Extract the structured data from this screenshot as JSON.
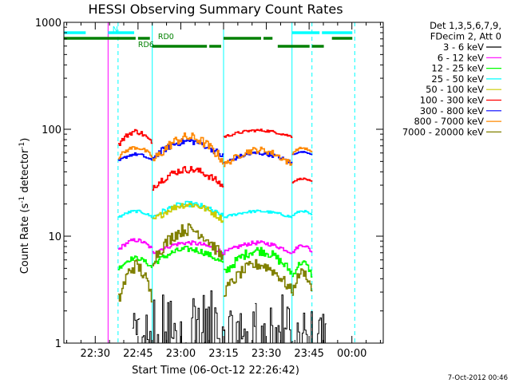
{
  "footer": {
    "date_stamp": "7-Oct-2012 00:46"
  },
  "chart_data": {
    "type": "line",
    "title": "HESSI Observing Summary Count Rates",
    "xlabel": "Start Time (06-Oct-12 22:26:42)",
    "ylabel_main": "Count Rate (s",
    "ylabel_sup1": "-1",
    "ylabel_mid": " detector",
    "ylabel_sup2": "-1",
    "ylabel_end": ")",
    "y_scale": "log",
    "ylim": [
      1,
      1000
    ],
    "xlim_min": [
      -11,
      101
    ],
    "x_ticks": [
      {
        "t": 0,
        "label": "22:30"
      },
      {
        "t": 15,
        "label": "22:45"
      },
      {
        "t": 30,
        "label": "23:00"
      },
      {
        "t": 45,
        "label": "23:15"
      },
      {
        "t": 60,
        "label": "23:30"
      },
      {
        "t": 75,
        "label": "23:45"
      },
      {
        "t": 90,
        "label": "00:00"
      }
    ],
    "y_ticks": [
      {
        "v": 1,
        "label": "1"
      },
      {
        "v": 10,
        "label": "10"
      },
      {
        "v": 100,
        "label": "100"
      },
      {
        "v": 1000,
        "label": "1000"
      }
    ],
    "legend_header": [
      "Det 1,3,5,6,7,9,",
      "FDecim 2, Att 0"
    ],
    "series": [
      {
        "name": "3 - 6 keV",
        "color": "#000000"
      },
      {
        "name": "6 - 12 keV",
        "color": "#ff00ff"
      },
      {
        "name": "12 - 25 keV",
        "color": "#00ff00"
      },
      {
        "name": "25 - 50 keV",
        "color": "#00ffff"
      },
      {
        "name": "50 - 100 keV",
        "color": "#cccc00"
      },
      {
        "name": "100 - 300 keV",
        "color": "#ff0000"
      },
      {
        "name": "300 - 800 keV",
        "color": "#0000ff"
      },
      {
        "name": "800 - 7000 keV",
        "color": "#ff8800"
      },
      {
        "name": "7000 - 20000 keV",
        "color": "#808000"
      }
    ],
    "observing_segments": [
      {
        "label": "N",
        "color": "#00ffff",
        "ranges": [
          [
            -11,
            -2.5
          ],
          [
            4.5,
            14.5
          ],
          [
            69,
            79.5
          ],
          [
            79.5,
            91
          ]
        ]
      },
      {
        "label": "RD0",
        "color": "#008000",
        "ranges": [
          [
            -11,
            15
          ],
          [
            15,
            20
          ],
          [
            45,
            59
          ],
          [
            59,
            63
          ],
          [
            83,
            91
          ]
        ]
      },
      {
        "label": "RD6",
        "color": "#008000",
        "ranges": [
          [
            20,
            40
          ],
          [
            40,
            45
          ],
          [
            64,
            76
          ],
          [
            76,
            81
          ]
        ]
      }
    ],
    "bands": [
      {
        "series": "3 - 6 keV",
        "segments": [
          {
            "t0": 13,
            "t1": 15.5,
            "lo": 1.2,
            "hi": 1.9
          },
          {
            "t0": 16,
            "t1": 20,
            "lo": 1.0,
            "hi": 2.0
          },
          {
            "t0": 20,
            "t1": 32,
            "lo": 1.0,
            "hi": 2.9
          },
          {
            "t0": 32,
            "t1": 45,
            "lo": 1.0,
            "hi": 3.1
          },
          {
            "t0": 45,
            "t1": 56,
            "lo": 1.0,
            "hi": 2.0
          },
          {
            "t0": 56,
            "t1": 69,
            "lo": 1.0,
            "hi": 2.9
          },
          {
            "t0": 69,
            "t1": 81,
            "lo": 1.0,
            "hi": 2.0
          }
        ]
      },
      {
        "series": "6 - 12 keV",
        "segments": [
          {
            "t0": 8,
            "t1": 20,
            "lo": 7.5,
            "hi": 9.5
          },
          {
            "t0": 20,
            "t1": 45,
            "lo": 7.0,
            "hi": 9.0
          },
          {
            "t0": 45,
            "t1": 69,
            "lo": 7.0,
            "hi": 9.0
          },
          {
            "t0": 69,
            "t1": 76,
            "lo": 7.0,
            "hi": 8.5
          }
        ]
      },
      {
        "series": "12 - 25 keV",
        "segments": [
          {
            "t0": 8,
            "t1": 20,
            "lo": 5.0,
            "hi": 6.5
          },
          {
            "t0": 20,
            "t1": 45,
            "lo": 5.5,
            "hi": 8.0
          },
          {
            "t0": 45,
            "t1": 69,
            "lo": 4.5,
            "hi": 8.0
          },
          {
            "t0": 69,
            "t1": 76,
            "lo": 4.2,
            "hi": 6.0
          }
        ]
      },
      {
        "series": "25 - 50 keV",
        "segments": [
          {
            "t0": 8,
            "t1": 20,
            "lo": 15.0,
            "hi": 17.5
          },
          {
            "t0": 20,
            "t1": 45,
            "lo": 15.0,
            "hi": 21.0
          },
          {
            "t0": 45,
            "t1": 69,
            "lo": 15.0,
            "hi": 17.5
          },
          {
            "t0": 69,
            "t1": 76,
            "lo": 15.5,
            "hi": 17.5
          }
        ]
      },
      {
        "series": "50 - 100 keV",
        "segments": [
          {
            "t0": 20,
            "t1": 45,
            "lo": 14.0,
            "hi": 21.0
          }
        ]
      },
      {
        "series": "100 - 300 keV",
        "segments": [
          {
            "t0": 8,
            "t1": 20,
            "lo": 72.0,
            "hi": 100.0
          },
          {
            "t0": 20,
            "t1": 45,
            "lo": 29.0,
            "hi": 45.0
          },
          {
            "t0": 45,
            "t1": 69,
            "lo": 85.0,
            "hi": 100.0
          },
          {
            "t0": 69,
            "t1": 76,
            "lo": 32.0,
            "hi": 35.0
          }
        ]
      },
      {
        "series": "300 - 800 keV",
        "segments": [
          {
            "t0": 8,
            "t1": 20,
            "lo": 50.0,
            "hi": 60.0
          },
          {
            "t0": 20,
            "t1": 45,
            "lo": 55.0,
            "hi": 82.0
          },
          {
            "t0": 45,
            "t1": 69,
            "lo": 48.0,
            "hi": 62.0
          },
          {
            "t0": 69,
            "t1": 76,
            "lo": 58.0,
            "hi": 62.0
          }
        ]
      },
      {
        "series": "800 - 7000 keV",
        "segments": [
          {
            "t0": 8,
            "t1": 20,
            "lo": 55.0,
            "hi": 70.0
          },
          {
            "t0": 20,
            "t1": 45,
            "lo": 50.0,
            "hi": 92.0
          },
          {
            "t0": 45,
            "t1": 69,
            "lo": 46.0,
            "hi": 68.0
          },
          {
            "t0": 69,
            "t1": 76,
            "lo": 60.0,
            "hi": 68.0
          }
        ]
      },
      {
        "series": "7000 - 20000 keV",
        "segments": [
          {
            "t0": 8,
            "t1": 20,
            "lo": 2.5,
            "hi": 6.0
          },
          {
            "t0": 20,
            "t1": 45,
            "lo": 6.0,
            "hi": 13.0
          },
          {
            "t0": 45,
            "t1": 69,
            "lo": 3.0,
            "hi": 6.0
          },
          {
            "t0": 69,
            "t1": 76,
            "lo": 3.0,
            "hi": 5.0
          }
        ]
      }
    ],
    "vertical_markers": [
      {
        "t": -11,
        "color": "#00ffff",
        "style": "solid"
      },
      {
        "t": 4.5,
        "color": "#ff00ff",
        "style": "solid"
      },
      {
        "t": 8,
        "color": "#00ffff",
        "style": "dashed"
      },
      {
        "t": 20,
        "color": "#00ffff",
        "style": "solid"
      },
      {
        "t": 45,
        "color": "#00ffff",
        "style": "solid"
      },
      {
        "t": 69,
        "color": "#00ffff",
        "style": "solid"
      },
      {
        "t": 76,
        "color": "#00ffff",
        "style": "dashed"
      },
      {
        "t": 91,
        "color": "#00ffff",
        "style": "dashed"
      }
    ]
  }
}
